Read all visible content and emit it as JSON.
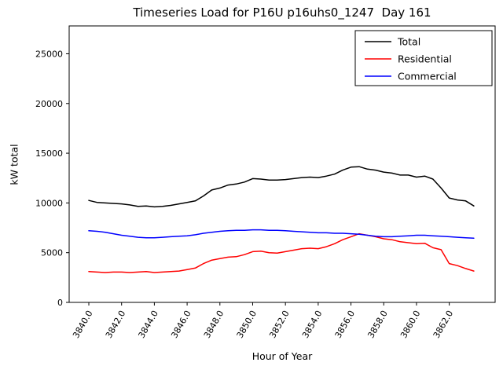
{
  "title": "Timeseries Load for P16U p16uhs0_1247  Day 161",
  "chart_data": {
    "type": "line",
    "title": "Timeseries Load for P16U p16uhs0_1247  Day 161",
    "xlabel": "Hour of Year",
    "ylabel": "kW total",
    "xlim": [
      3838.8,
      3864.8
    ],
    "ylim": [
      0,
      27800
    ],
    "grid": false,
    "legend_position": "upper right",
    "xticks": [
      3840,
      3842,
      3844,
      3846,
      3848,
      3850,
      3852,
      3854,
      3856,
      3858,
      3860,
      3862
    ],
    "xtick_labels": [
      "3840.0",
      "3842.0",
      "3844.0",
      "3846.0",
      "3848.0",
      "3850.0",
      "3852.0",
      "3854.0",
      "3856.0",
      "3858.0",
      "3860.0",
      "3862.0"
    ],
    "yticks": [
      0,
      5000,
      10000,
      15000,
      20000,
      25000
    ],
    "ytick_labels": [
      "0",
      "5000",
      "10000",
      "15000",
      "20000",
      "25000"
    ],
    "x": [
      3840.0,
      3840.5,
      3841.0,
      3841.5,
      3842.0,
      3842.5,
      3843.0,
      3843.5,
      3844.0,
      3844.5,
      3845.0,
      3845.5,
      3846.0,
      3846.5,
      3847.0,
      3847.5,
      3848.0,
      3848.5,
      3849.0,
      3849.5,
      3850.0,
      3850.5,
      3851.0,
      3851.5,
      3852.0,
      3852.5,
      3853.0,
      3853.5,
      3854.0,
      3854.5,
      3855.0,
      3855.5,
      3856.0,
      3856.5,
      3857.0,
      3857.5,
      3858.0,
      3858.5,
      3859.0,
      3859.5,
      3860.0,
      3860.5,
      3861.0,
      3861.5,
      3862.0,
      3862.5,
      3863.0,
      3863.5
    ],
    "series": [
      {
        "name": "Total",
        "color": "#000000",
        "values": [
          10250,
          10050,
          10000,
          9950,
          9900,
          9800,
          9650,
          9700,
          9600,
          9650,
          9750,
          9900,
          10050,
          10200,
          10700,
          11300,
          11500,
          11800,
          11900,
          12100,
          12450,
          12400,
          12300,
          12300,
          12350,
          12450,
          12550,
          12600,
          12550,
          12700,
          12900,
          13300,
          13600,
          13650,
          13400,
          13300,
          13100,
          13000,
          12800,
          12800,
          12600,
          12700,
          12400,
          11500,
          10500,
          10300,
          10200,
          9700
        ]
      },
      {
        "name": "Residential",
        "color": "#ff0000",
        "values": [
          3100,
          3050,
          3000,
          3050,
          3050,
          3000,
          3050,
          3100,
          3000,
          3050,
          3100,
          3150,
          3300,
          3450,
          3900,
          4250,
          4400,
          4550,
          4600,
          4800,
          5100,
          5150,
          5000,
          4950,
          5100,
          5250,
          5400,
          5450,
          5400,
          5600,
          5900,
          6300,
          6600,
          6900,
          6750,
          6600,
          6400,
          6300,
          6100,
          6000,
          5900,
          5950,
          5500,
          5300,
          3900,
          3700,
          3400,
          3150
        ]
      },
      {
        "name": "Commercial",
        "color": "#0000ff",
        "values": [
          7200,
          7150,
          7050,
          6900,
          6750,
          6650,
          6550,
          6500,
          6500,
          6550,
          6600,
          6650,
          6700,
          6800,
          6950,
          7050,
          7150,
          7200,
          7250,
          7250,
          7300,
          7300,
          7250,
          7250,
          7200,
          7150,
          7100,
          7050,
          7000,
          7000,
          6950,
          6950,
          6900,
          6850,
          6750,
          6650,
          6600,
          6600,
          6650,
          6700,
          6750,
          6750,
          6700,
          6650,
          6600,
          6550,
          6500,
          6450
        ]
      }
    ],
    "legend": [
      "Total",
      "Residential",
      "Commercial"
    ]
  }
}
